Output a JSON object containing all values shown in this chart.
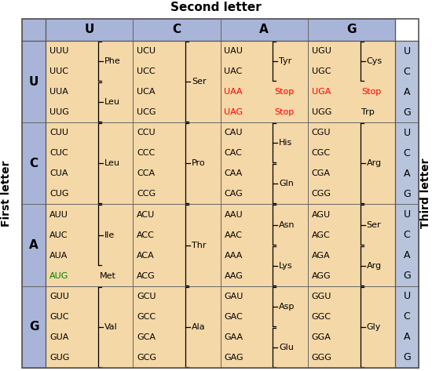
{
  "title_top": "Second letter",
  "title_left": "First letter",
  "title_right": "Third letter",
  "second_letters": [
    "U",
    "C",
    "A",
    "G"
  ],
  "first_letters": [
    "U",
    "C",
    "A",
    "G"
  ],
  "third_letters": [
    "U",
    "C",
    "A",
    "G"
  ],
  "header_bg": "#a8b4d8",
  "cell_bg": "#f5d8a8",
  "third_col_bg": "#b8c4dc",
  "cells": [
    {
      "row": 0,
      "col": 0,
      "codons": [
        "UUU",
        "UUC",
        "UUA",
        "UUG"
      ],
      "aminos": [
        {
          "name": "Phe",
          "start": 0,
          "end": 1,
          "color": "black"
        },
        {
          "name": "Leu",
          "start": 2,
          "end": 3,
          "color": "black"
        }
      ],
      "codon_colors": [
        "black",
        "black",
        "black",
        "black"
      ]
    },
    {
      "row": 0,
      "col": 1,
      "codons": [
        "UCU",
        "UCC",
        "UCA",
        "UCG"
      ],
      "aminos": [
        {
          "name": "Ser",
          "start": 0,
          "end": 3,
          "color": "black"
        }
      ],
      "codon_colors": [
        "black",
        "black",
        "black",
        "black"
      ]
    },
    {
      "row": 0,
      "col": 2,
      "codons": [
        "UAU",
        "UAC",
        "UAA",
        "UAG"
      ],
      "aminos": [
        {
          "name": "Tyr",
          "start": 0,
          "end": 1,
          "color": "black"
        },
        {
          "name": "Stop",
          "start": 2,
          "end": 2,
          "color": "red"
        },
        {
          "name": "Stop",
          "start": 3,
          "end": 3,
          "color": "red"
        }
      ],
      "codon_colors": [
        "black",
        "black",
        "red",
        "red"
      ]
    },
    {
      "row": 0,
      "col": 3,
      "codons": [
        "UGU",
        "UGC",
        "UGA",
        "UGG"
      ],
      "aminos": [
        {
          "name": "Cys",
          "start": 0,
          "end": 1,
          "color": "black"
        },
        {
          "name": "Stop",
          "start": 2,
          "end": 2,
          "color": "red"
        },
        {
          "name": "Trp",
          "start": 3,
          "end": 3,
          "color": "black"
        }
      ],
      "codon_colors": [
        "black",
        "black",
        "red",
        "black"
      ]
    },
    {
      "row": 1,
      "col": 0,
      "codons": [
        "CUU",
        "CUC",
        "CUA",
        "CUG"
      ],
      "aminos": [
        {
          "name": "Leu",
          "start": 0,
          "end": 3,
          "color": "black"
        }
      ],
      "codon_colors": [
        "black",
        "black",
        "black",
        "black"
      ]
    },
    {
      "row": 1,
      "col": 1,
      "codons": [
        "CCU",
        "CCC",
        "CCA",
        "CCG"
      ],
      "aminos": [
        {
          "name": "Pro",
          "start": 0,
          "end": 3,
          "color": "black"
        }
      ],
      "codon_colors": [
        "black",
        "black",
        "black",
        "black"
      ]
    },
    {
      "row": 1,
      "col": 2,
      "codons": [
        "CAU",
        "CAC",
        "CAA",
        "CAG"
      ],
      "aminos": [
        {
          "name": "His",
          "start": 0,
          "end": 1,
          "color": "black"
        },
        {
          "name": "Gln",
          "start": 2,
          "end": 3,
          "color": "black"
        }
      ],
      "codon_colors": [
        "black",
        "black",
        "black",
        "black"
      ]
    },
    {
      "row": 1,
      "col": 3,
      "codons": [
        "CGU",
        "CGC",
        "CGA",
        "CGG"
      ],
      "aminos": [
        {
          "name": "Arg",
          "start": 0,
          "end": 3,
          "color": "black"
        }
      ],
      "codon_colors": [
        "black",
        "black",
        "black",
        "black"
      ]
    },
    {
      "row": 2,
      "col": 0,
      "codons": [
        "AUU",
        "AUC",
        "AUA",
        "AUG"
      ],
      "aminos": [
        {
          "name": "Ile",
          "start": 0,
          "end": 2,
          "color": "black"
        },
        {
          "name": "Met",
          "start": 3,
          "end": 3,
          "color": "black"
        }
      ],
      "codon_colors": [
        "black",
        "black",
        "black",
        "green"
      ]
    },
    {
      "row": 2,
      "col": 1,
      "codons": [
        "ACU",
        "ACC",
        "ACA",
        "ACG"
      ],
      "aminos": [
        {
          "name": "Thr",
          "start": 0,
          "end": 3,
          "color": "black"
        }
      ],
      "codon_colors": [
        "black",
        "black",
        "black",
        "black"
      ]
    },
    {
      "row": 2,
      "col": 2,
      "codons": [
        "AAU",
        "AAC",
        "AAA",
        "AAG"
      ],
      "aminos": [
        {
          "name": "Asn",
          "start": 0,
          "end": 1,
          "color": "black"
        },
        {
          "name": "Lys",
          "start": 2,
          "end": 3,
          "color": "black"
        }
      ],
      "codon_colors": [
        "black",
        "black",
        "black",
        "black"
      ]
    },
    {
      "row": 2,
      "col": 3,
      "codons": [
        "AGU",
        "AGC",
        "AGA",
        "AGG"
      ],
      "aminos": [
        {
          "name": "Ser",
          "start": 0,
          "end": 1,
          "color": "black"
        },
        {
          "name": "Arg",
          "start": 2,
          "end": 3,
          "color": "black"
        }
      ],
      "codon_colors": [
        "black",
        "black",
        "black",
        "black"
      ]
    },
    {
      "row": 3,
      "col": 0,
      "codons": [
        "GUU",
        "GUC",
        "GUA",
        "GUG"
      ],
      "aminos": [
        {
          "name": "Val",
          "start": 0,
          "end": 3,
          "color": "black"
        }
      ],
      "codon_colors": [
        "black",
        "black",
        "black",
        "black"
      ]
    },
    {
      "row": 3,
      "col": 1,
      "codons": [
        "GCU",
        "GCC",
        "GCA",
        "GCG"
      ],
      "aminos": [
        {
          "name": "Ala",
          "start": 0,
          "end": 3,
          "color": "black"
        }
      ],
      "codon_colors": [
        "black",
        "black",
        "black",
        "black"
      ]
    },
    {
      "row": 3,
      "col": 2,
      "codons": [
        "GAU",
        "GAC",
        "GAA",
        "GAG"
      ],
      "aminos": [
        {
          "name": "Asp",
          "start": 0,
          "end": 1,
          "color": "black"
        },
        {
          "name": "Glu",
          "start": 2,
          "end": 3,
          "color": "black"
        }
      ],
      "codon_colors": [
        "black",
        "black",
        "black",
        "black"
      ]
    },
    {
      "row": 3,
      "col": 3,
      "codons": [
        "GGU",
        "GGC",
        "GGA",
        "GGG"
      ],
      "aminos": [
        {
          "name": "Gly",
          "start": 0,
          "end": 3,
          "color": "black"
        }
      ],
      "codon_colors": [
        "black",
        "black",
        "black",
        "black"
      ]
    }
  ]
}
